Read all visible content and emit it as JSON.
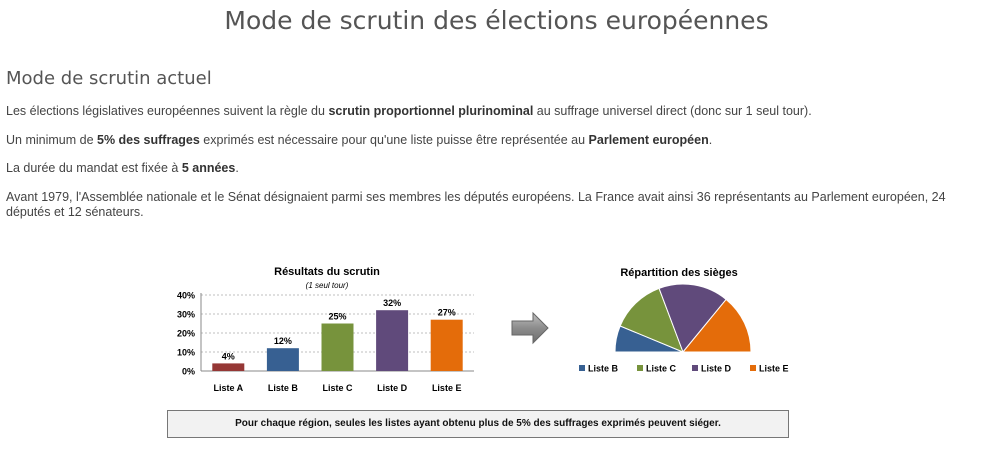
{
  "page": {
    "title": "Mode de scrutin des élections européennes",
    "section_title": "Mode de scrutin actuel"
  },
  "paragraphs": {
    "p1": {
      "before": "Les élections législatives européennes suivent la règle du ",
      "bold1": "scrutin proportionnel plurinominal",
      "after": " au suffrage universel direct (donc sur 1 seul tour)."
    },
    "p2": {
      "before": "Un minimum de ",
      "bold1": "5% des suffrages",
      "middle": " exprimés est nécessaire pour qu'une liste puisse être représentée au ",
      "bold2": "Parlement européen",
      "after": "."
    },
    "p3": {
      "before": "La durée du mandat est fixée à ",
      "bold1": "5 années",
      "after": "."
    },
    "p4": {
      "text": "Avant 1979, l'Assemblée nationale et le Sénat désignaient parmi ses membres les députés européens. La France avait ainsi 36 représentants au Parlement européen, 24 députés et 12 sénateurs."
    }
  },
  "chart_data": [
    {
      "type": "bar",
      "title": "Résultats du scrutin",
      "subtitle": "(1 seul tour)",
      "categories": [
        "Liste A",
        "Liste B",
        "Liste C",
        "Liste D",
        "Liste E"
      ],
      "values": [
        4,
        12,
        25,
        32,
        27
      ],
      "value_labels": [
        "4%",
        "12%",
        "25%",
        "32%",
        "27%"
      ],
      "colors": [
        "#953735",
        "#376092",
        "#77933c",
        "#604a7b",
        "#e46c0a"
      ],
      "yticks": [
        "0%",
        "10%",
        "20%",
        "30%",
        "40%"
      ],
      "ylim": [
        0,
        40
      ],
      "grid": true
    },
    {
      "type": "pie",
      "title": "Répartition des sièges",
      "labels": [
        "Liste B",
        "Liste C",
        "Liste D",
        "Liste E"
      ],
      "values": [
        12,
        25,
        32,
        27
      ],
      "colors": [
        "#376092",
        "#77933c",
        "#604a7b",
        "#e46c0a"
      ],
      "half_circle": true,
      "legend": "bottom"
    }
  ],
  "arrow": {
    "icon": "right-arrow-icon",
    "color": "#808080"
  },
  "note": "Pour chaque région, seules les listes ayant obtenu  plus de 5% des suffrages exprimés peuvent siéger."
}
